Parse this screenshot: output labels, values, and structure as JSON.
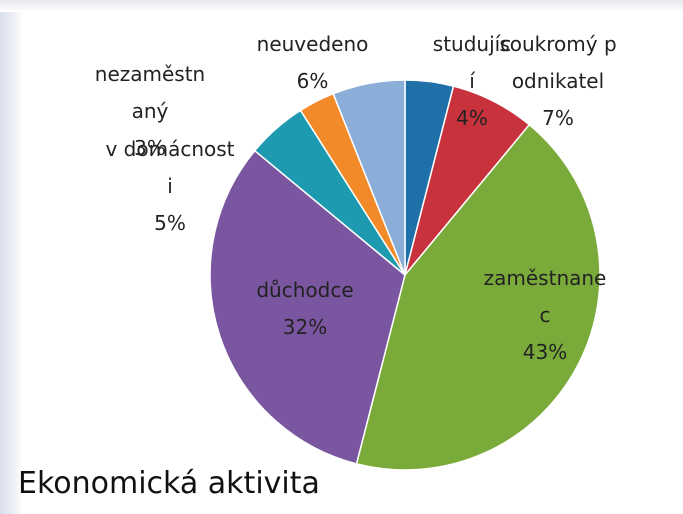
{
  "chart_data": {
    "type": "pie",
    "title": "Ekonomická aktivita",
    "categories": [
      "studující",
      "soukromý podnikatel",
      "zaměstnanec",
      "důchodce",
      "v domácnosti",
      "nezaměstnaný",
      "neuvedeno"
    ],
    "values": [
      4,
      7,
      43,
      32,
      5,
      3,
      6
    ],
    "value_labels": [
      "4%",
      "7%",
      "43%",
      "32%",
      "5%",
      "3%",
      "6%"
    ],
    "colors": [
      "#1f6fa8",
      "#c8323c",
      "#7aab3a",
      "#7b56a0",
      "#1d9ab0",
      "#f28a2a",
      "#8aaed8"
    ]
  }
}
